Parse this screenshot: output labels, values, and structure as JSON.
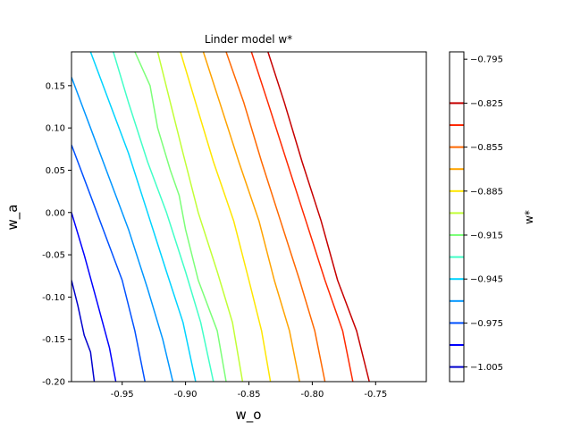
{
  "chart_data": {
    "type": "contour",
    "title": "Linder model w*",
    "xlabel": "w_o",
    "ylabel": "w_a",
    "xlim": [
      -0.99,
      -0.71
    ],
    "ylim": [
      -0.2,
      0.19
    ],
    "xticks": [
      "-0.95",
      "-0.90",
      "-0.85",
      "-0.80",
      "-0.75"
    ],
    "xtick_values": [
      -0.95,
      -0.9,
      -0.85,
      -0.8,
      -0.75
    ],
    "yticks": [
      "0.15",
      "0.10",
      "0.05",
      "0.00",
      "-0.05",
      "-0.10",
      "-0.15",
      "-0.20"
    ],
    "ytick_values": [
      0.15,
      0.1,
      0.05,
      0.0,
      -0.05,
      -0.1,
      -0.15,
      -0.2
    ],
    "colorbar": {
      "label": "w*",
      "range": [
        -1.015,
        -0.79
      ],
      "tick_values": [
        -0.795,
        -0.825,
        -0.855,
        -0.885,
        -0.915,
        -0.945,
        -0.975,
        -1.005
      ],
      "tick_labels": [
        "−0.795",
        "−0.825",
        "−0.855",
        "−0.885",
        "−0.915",
        "−0.945",
        "−0.975",
        "−1.005"
      ]
    },
    "levels": [
      {
        "value": -1.005,
        "color": "#0000cd",
        "points": [
          [
            -0.99,
            -0.08
          ],
          [
            -0.985,
            -0.11
          ],
          [
            -0.98,
            -0.145
          ],
          [
            -0.975,
            -0.165
          ],
          [
            -0.972,
            -0.2
          ]
        ]
      },
      {
        "value": -0.99,
        "color": "#0000ff",
        "points": [
          [
            -0.99,
            0.0
          ],
          [
            -0.98,
            -0.05
          ],
          [
            -0.97,
            -0.105
          ],
          [
            -0.96,
            -0.16
          ],
          [
            -0.955,
            -0.2
          ]
        ]
      },
      {
        "value": -0.975,
        "color": "#0050ff",
        "points": [
          [
            -0.99,
            0.08
          ],
          [
            -0.975,
            0.02
          ],
          [
            -0.96,
            -0.04
          ],
          [
            -0.95,
            -0.08
          ],
          [
            -0.94,
            -0.14
          ],
          [
            -0.932,
            -0.2
          ]
        ]
      },
      {
        "value": -0.96,
        "color": "#0096ff",
        "points": [
          [
            -0.99,
            0.16
          ],
          [
            -0.975,
            0.1
          ],
          [
            -0.96,
            0.04
          ],
          [
            -0.945,
            -0.02
          ],
          [
            -0.93,
            -0.09
          ],
          [
            -0.918,
            -0.15
          ],
          [
            -0.91,
            -0.2
          ]
        ]
      },
      {
        "value": -0.945,
        "color": "#00d4ff",
        "points": [
          [
            -0.975,
            0.19
          ],
          [
            -0.96,
            0.13
          ],
          [
            -0.945,
            0.07
          ],
          [
            -0.93,
            0.0
          ],
          [
            -0.915,
            -0.07
          ],
          [
            -0.902,
            -0.13
          ],
          [
            -0.892,
            -0.2
          ]
        ]
      },
      {
        "value": -0.93,
        "color": "#41ffc7",
        "points": [
          [
            -0.957,
            0.19
          ],
          [
            -0.945,
            0.13
          ],
          [
            -0.93,
            0.06
          ],
          [
            -0.915,
            0.0
          ],
          [
            -0.9,
            -0.07
          ],
          [
            -0.888,
            -0.13
          ],
          [
            -0.878,
            -0.2
          ]
        ]
      },
      {
        "value": -0.915,
        "color": "#7cff79",
        "points": [
          [
            -0.94,
            0.19
          ],
          [
            -0.928,
            0.15
          ],
          [
            -0.922,
            0.1
          ],
          [
            -0.912,
            0.05
          ],
          [
            -0.905,
            0.02
          ],
          [
            -0.9,
            -0.02
          ],
          [
            -0.89,
            -0.08
          ],
          [
            -0.875,
            -0.14
          ],
          [
            -0.868,
            -0.2
          ]
        ]
      },
      {
        "value": -0.9,
        "color": "#c1ff36",
        "points": [
          [
            -0.922,
            0.19
          ],
          [
            -0.912,
            0.13
          ],
          [
            -0.902,
            0.07
          ],
          [
            -0.89,
            0.0
          ],
          [
            -0.875,
            -0.07
          ],
          [
            -0.863,
            -0.13
          ],
          [
            -0.855,
            -0.2
          ]
        ]
      },
      {
        "value": -0.885,
        "color": "#ffe600",
        "points": [
          [
            -0.904,
            0.19
          ],
          [
            -0.892,
            0.13
          ],
          [
            -0.878,
            0.06
          ],
          [
            -0.862,
            -0.01
          ],
          [
            -0.85,
            -0.08
          ],
          [
            -0.84,
            -0.14
          ],
          [
            -0.833,
            -0.2
          ]
        ]
      },
      {
        "value": -0.87,
        "color": "#ffa300",
        "points": [
          [
            -0.886,
            0.19
          ],
          [
            -0.873,
            0.13
          ],
          [
            -0.858,
            0.06
          ],
          [
            -0.842,
            -0.01
          ],
          [
            -0.83,
            -0.08
          ],
          [
            -0.818,
            -0.14
          ],
          [
            -0.81,
            -0.2
          ]
        ]
      },
      {
        "value": -0.855,
        "color": "#ff6800",
        "points": [
          [
            -0.868,
            0.19
          ],
          [
            -0.854,
            0.13
          ],
          [
            -0.84,
            0.06
          ],
          [
            -0.825,
            -0.01
          ],
          [
            -0.81,
            -0.08
          ],
          [
            -0.798,
            -0.14
          ],
          [
            -0.79,
            -0.2
          ]
        ]
      },
      {
        "value": -0.84,
        "color": "#ff2900",
        "points": [
          [
            -0.848,
            0.19
          ],
          [
            -0.835,
            0.13
          ],
          [
            -0.82,
            0.06
          ],
          [
            -0.805,
            -0.01
          ],
          [
            -0.79,
            -0.08
          ],
          [
            -0.776,
            -0.14
          ],
          [
            -0.768,
            -0.2
          ]
        ]
      },
      {
        "value": -0.825,
        "color": "#c60000",
        "points": [
          [
            -0.835,
            0.19
          ],
          [
            -0.822,
            0.13
          ],
          [
            -0.808,
            0.06
          ],
          [
            -0.793,
            -0.01
          ],
          [
            -0.78,
            -0.08
          ],
          [
            -0.765,
            -0.14
          ],
          [
            -0.755,
            -0.2
          ]
        ]
      }
    ]
  }
}
